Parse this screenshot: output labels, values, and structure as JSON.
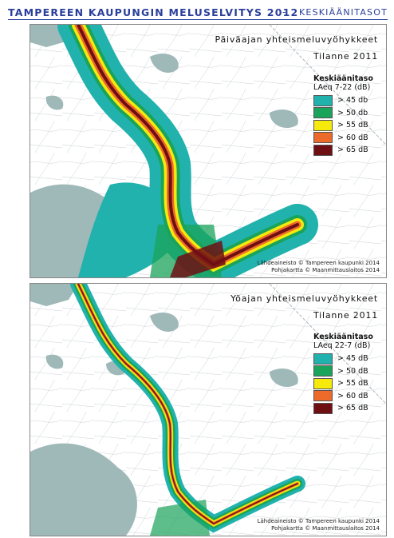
{
  "header": {
    "title": "TAMPEREEN KAUPUNGIN MELUSELVITYS 2012",
    "separator": "-",
    "subtitle": "KESKIÄÄNITASOT"
  },
  "panels": [
    {
      "title": "Päiväajan yhteismeluvyöhykkeet",
      "year": "Tilanne 2011",
      "legend_title": "Keskiäänitaso",
      "legend_subtitle": "LAeq 7-22 (dB)",
      "legend_items": [
        {
          "label": "> 45 db",
          "color": "#21b2ad"
        },
        {
          "label": "> 50 db",
          "color": "#1aa35a"
        },
        {
          "label": "> 55 dB",
          "color": "#f5ea0b"
        },
        {
          "label": "> 60 dB",
          "color": "#ec6a2a"
        },
        {
          "label": "> 65 dB",
          "color": "#6e0f14"
        }
      ],
      "source_1": "Lähdeaineisto © Tampereen kaupunki 2014",
      "source_2": "Pohjakartta © Maanmittauslaitos 2014"
    },
    {
      "title": "Yöajan yhteismeluvyöhykkeet",
      "year": "Tilanne 2011",
      "legend_title": "Keskiäänitaso",
      "legend_subtitle": "LAeq 22-7 (dB)",
      "legend_items": [
        {
          "label": "> 45 dB",
          "color": "#21b2ad"
        },
        {
          "label": "> 50 dB",
          "color": "#1aa35a"
        },
        {
          "label": "> 55 dB",
          "color": "#f5ea0b"
        },
        {
          "label": "> 60 dB",
          "color": "#ec6a2a"
        },
        {
          "label": "> 65 dB",
          "color": "#6e0f14"
        }
      ],
      "source_1": "Lähdeaineisto © Tampereen kaupunki 2014",
      "source_2": "Pohjakartta © Maanmittauslaitos 2014"
    }
  ],
  "colors": {
    "water": "#9fb8b8",
    "land": "#ffffff",
    "band_45": "#21b2ad",
    "band_50": "#1aa35a",
    "band_55": "#f5ea0b",
    "band_60": "#ec6a2a",
    "band_65": "#6e0f14",
    "header_text": "#2a3f9a"
  }
}
